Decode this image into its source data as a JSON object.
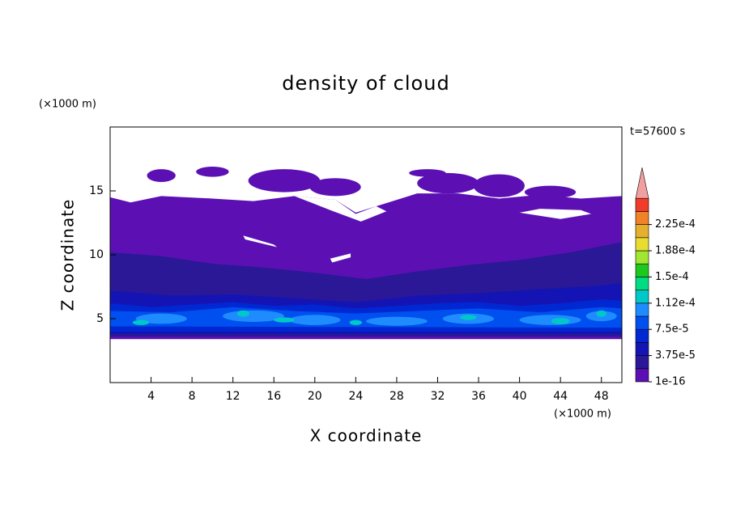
{
  "chart_data": {
    "type": "contour",
    "title": "density of cloud",
    "x_label": "X coordinate",
    "y_label": "Z coordinate",
    "x_unit": "(×1000 m)",
    "y_unit": "(×1000 m)",
    "annotation": "t=57600 s",
    "xlim": [
      0,
      50
    ],
    "xticks": [
      4,
      8,
      12,
      16,
      20,
      24,
      28,
      32,
      36,
      40,
      44,
      48
    ],
    "ylim": [
      0,
      20
    ],
    "yticks": [
      5,
      10,
      15
    ],
    "colorbar": {
      "levels": [
        {
          "value": 1e-16,
          "label": "1e-16"
        },
        {
          "value": 3.75e-05,
          "label": "3.75e-5"
        },
        {
          "value": 7.5e-05,
          "label": "7.5e-5"
        },
        {
          "value": 0.000112,
          "label": "1.12e-4"
        },
        {
          "value": 0.00015,
          "label": "1.5e-4"
        },
        {
          "value": 0.000188,
          "label": "1.88e-4"
        },
        {
          "value": 0.000225,
          "label": "2.25e-4"
        }
      ],
      "colors": [
        "#5c10b4",
        "#2a1896",
        "#1414b4",
        "#0028d2",
        "#0050f0",
        "#1e8cff",
        "#00c8c8",
        "#00dc82",
        "#1ec81e",
        "#a0e632",
        "#e6dc32",
        "#e6af2d",
        "#f08228",
        "#f03c28"
      ],
      "over_color": "#f0a0a0"
    }
  }
}
